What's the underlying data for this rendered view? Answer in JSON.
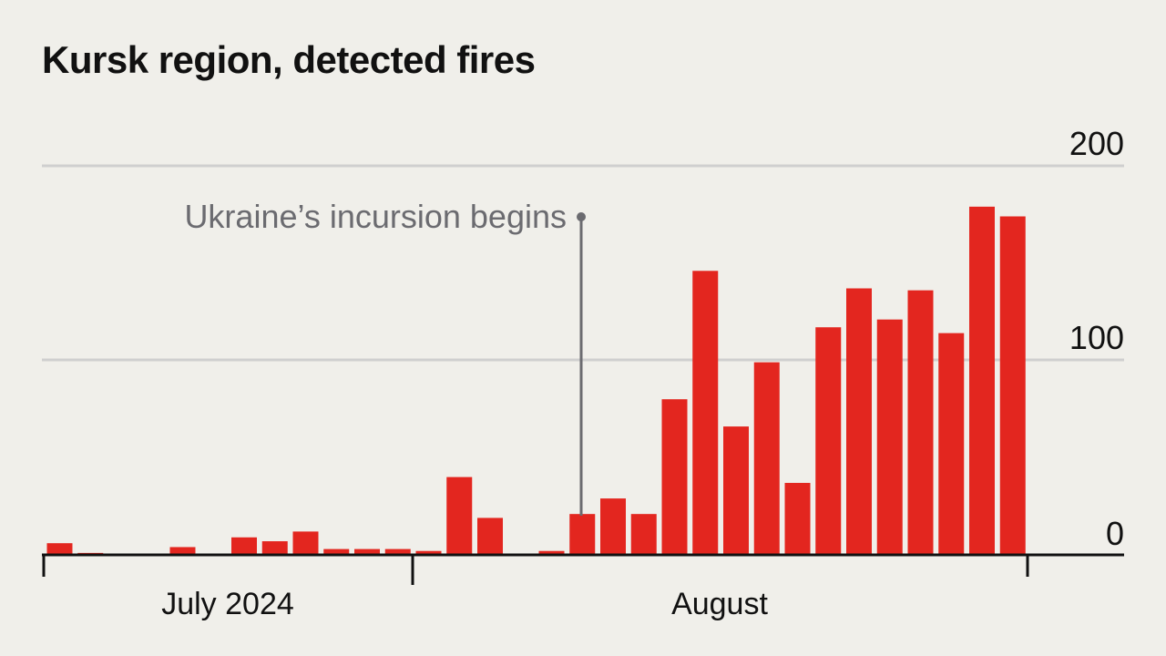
{
  "colors": {
    "background": "#f0efea",
    "bar": "#e3261f",
    "grid": "#cfcfcf",
    "axis": "#111111",
    "annotation": "#6b6b70"
  },
  "chart_data": {
    "type": "bar",
    "title": "Kursk region, detected fires",
    "x_labels": [
      "July 2024",
      "August"
    ],
    "y_ticks": [
      "200",
      "100",
      "0"
    ],
    "ylim": [
      0,
      200
    ],
    "grid": true,
    "annotation": {
      "text": "Ukraine’s incursion begins",
      "date": "2024-08-06"
    },
    "x": [
      "2024-07-06",
      "2024-07-07",
      "2024-07-08",
      "2024-07-09",
      "2024-07-10",
      "2024-07-11",
      "2024-07-12",
      "2024-07-13",
      "2024-07-14",
      "2024-07-15",
      "2024-07-16",
      "2024-07-17",
      "2024-07-18",
      "2024-07-19",
      "2024-07-20",
      "2024-07-21",
      "2024-07-22",
      "2024-07-23",
      "2024-07-24",
      "2024-08-06",
      "2024-08-07",
      "2024-08-08",
      "2024-08-09",
      "2024-08-10",
      "2024-08-11",
      "2024-08-12",
      "2024-08-13",
      "2024-08-14",
      "2024-08-15",
      "2024-08-16",
      "2024-08-17",
      "2024-08-18",
      "2024-08-19"
    ],
    "values": [
      6,
      1,
      0,
      0,
      4,
      0,
      9,
      7,
      12,
      3,
      3,
      3,
      2,
      40,
      19,
      0,
      2,
      21,
      29,
      21,
      80,
      146,
      66,
      99,
      37,
      117,
      137,
      121,
      136,
      114,
      179,
      174,
      0
    ]
  }
}
